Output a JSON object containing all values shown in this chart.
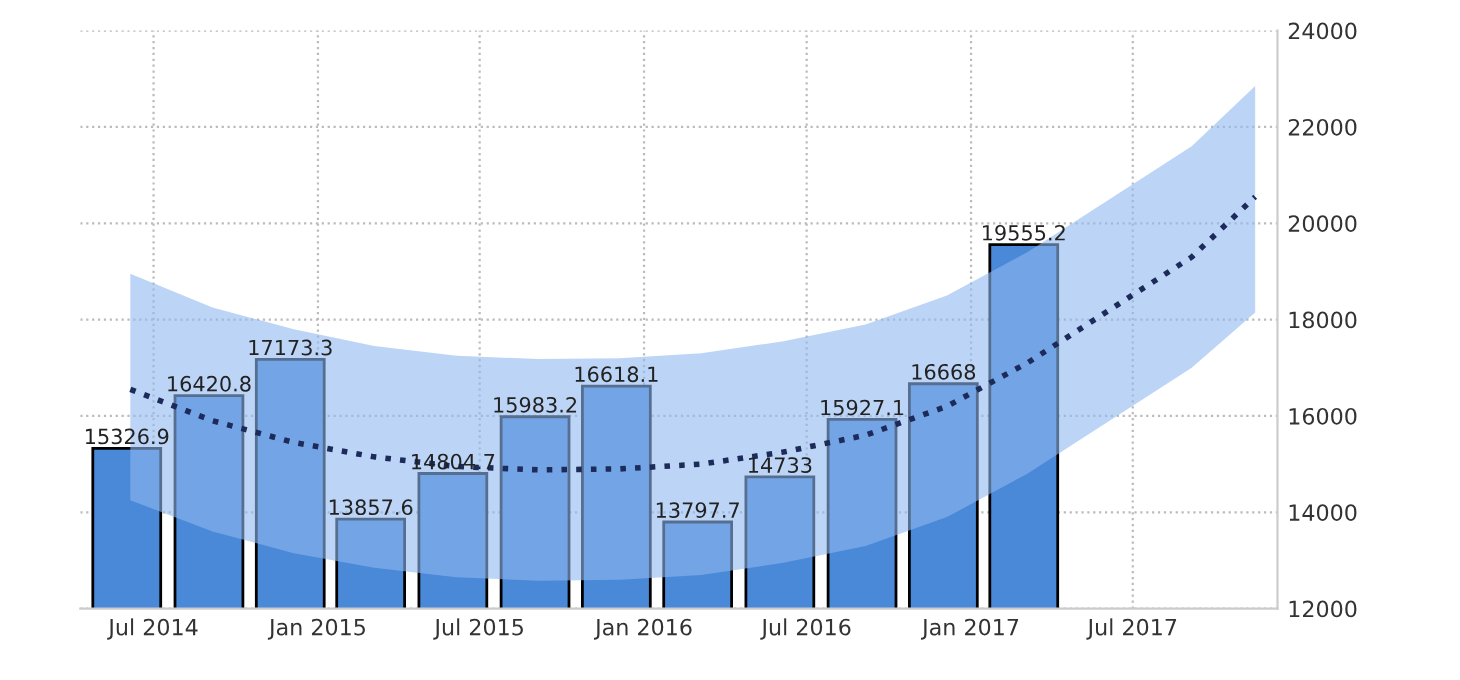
{
  "chart_data": {
    "type": "bar",
    "x": [
      "2014-06",
      "2014-09",
      "2014-12",
      "2015-03",
      "2015-06",
      "2015-09",
      "2015-12",
      "2016-03",
      "2016-06",
      "2016-09",
      "2016-12",
      "2017-03"
    ],
    "series": [
      {
        "color": "#4a89d8",
        "values": [
          15326.9,
          16420.8,
          17173.3,
          13857.6,
          14804.7,
          15983.2,
          16618.1,
          13797.7,
          14733,
          15927.1,
          16668,
          19555.2
        ],
        "value_labels": [
          "15326.9",
          "16420.8",
          "17173.3",
          "13857.6",
          "14804.7",
          "15983.2",
          "16618.1",
          "13797.7",
          "14733",
          "15927.1",
          "16668",
          "19555.2"
        ]
      },
      {
        "type": "line",
        "color": "#1c2b5a",
        "line_style": "dotted",
        "x": [
          "2014-06-05",
          "2014-09-05",
          "2014-12-05",
          "2015-03-05",
          "2015-06-05",
          "2015-09-05",
          "2015-12-05",
          "2016-03-05",
          "2016-06-05",
          "2016-09-05",
          "2016-12-05",
          "2017-03-05",
          "2017-06-05",
          "2017-09-05",
          "2017-11-15"
        ],
        "values": [
          16550,
          15900,
          15450,
          15150,
          14950,
          14880,
          14900,
          15000,
          15250,
          15600,
          16200,
          17100,
          18200,
          19300,
          20550
        ],
        "lower": [
          14250,
          13600,
          13150,
          12850,
          12650,
          12580,
          12600,
          12700,
          12950,
          13300,
          13900,
          14800,
          15900,
          17000,
          18150
        ],
        "upper": [
          18950,
          18250,
          17800,
          17450,
          17250,
          17180,
          17200,
          17300,
          17550,
          17900,
          18500,
          19400,
          20500,
          21600,
          22850
        ]
      }
    ],
    "xlim": [
      "2014-04-10",
      "2017-12-10"
    ],
    "xticks": [
      {
        "value": "2014-07",
        "label": "Jul 2014"
      },
      {
        "value": "2015-01",
        "label": "Jan 2015"
      },
      {
        "value": "2015-07",
        "label": "Jul 2015"
      },
      {
        "value": "2016-01",
        "label": "Jan 2016"
      },
      {
        "value": "2016-07",
        "label": "Jul 2016"
      },
      {
        "value": "2017-01",
        "label": "Jan 2017"
      },
      {
        "value": "2017-07",
        "label": "Jul 2017"
      }
    ],
    "ylim": [
      12000,
      24000
    ],
    "yticks": [
      12000,
      14000,
      16000,
      18000,
      20000,
      22000,
      24000
    ],
    "grid": true
  }
}
